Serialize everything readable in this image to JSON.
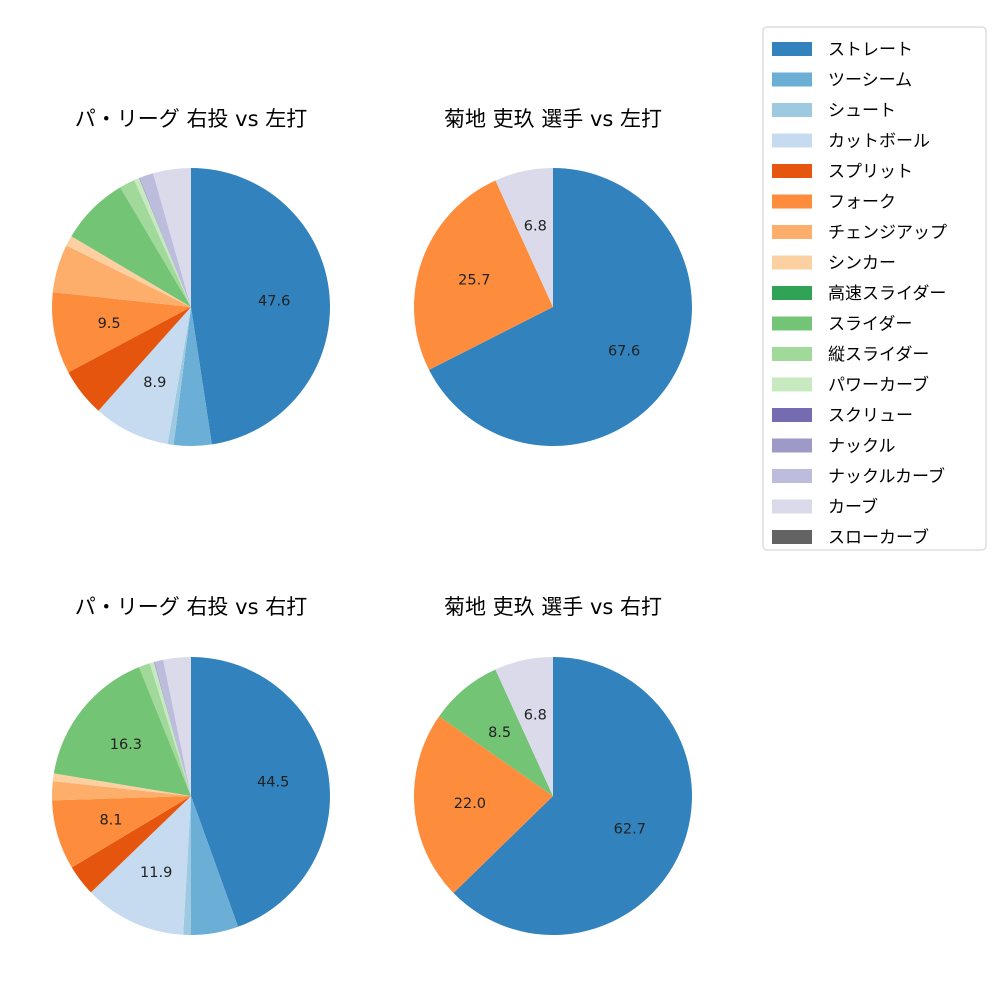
{
  "pitch_types": [
    {
      "name": "ストレート",
      "color": "#3182bd"
    },
    {
      "name": "ツーシーム",
      "color": "#6baed6"
    },
    {
      "name": "シュート",
      "color": "#9ecae1"
    },
    {
      "name": "カットボール",
      "color": "#c6dbef"
    },
    {
      "name": "スプリット",
      "color": "#e6550d"
    },
    {
      "name": "フォーク",
      "color": "#fd8d3c"
    },
    {
      "name": "チェンジアップ",
      "color": "#fdae6b"
    },
    {
      "name": "シンカー",
      "color": "#fdd0a2"
    },
    {
      "name": "高速スライダー",
      "color": "#31a354"
    },
    {
      "name": "スライダー",
      "color": "#74c476"
    },
    {
      "name": "縦スライダー",
      "color": "#a1d99b"
    },
    {
      "name": "パワーカーブ",
      "color": "#c7e9c0"
    },
    {
      "name": "スクリュー",
      "color": "#756bb1"
    },
    {
      "name": "ナックル",
      "color": "#9e9ac8"
    },
    {
      "name": "ナックルカーブ",
      "color": "#bcbddc"
    },
    {
      "name": "カーブ",
      "color": "#dadaeb"
    },
    {
      "name": "スローカーブ",
      "color": "#636363"
    }
  ],
  "chart_data": [
    {
      "type": "pie",
      "title": "パ・リーグ 右投 vs 左打",
      "labels": [
        "ストレート",
        "ツーシーム",
        "シュート",
        "カットボール",
        "スプリット",
        "フォーク",
        "チェンジアップ",
        "シンカー",
        "高速スライダー",
        "スライダー",
        "縦スライダー",
        "パワーカーブ",
        "スクリュー",
        "ナックル",
        "ナックルカーブ",
        "カーブ",
        "スローカーブ"
      ],
      "values": [
        47.6,
        4.4,
        0.7,
        8.9,
        5.6,
        9.5,
        5.6,
        1.2,
        0.0,
        8.0,
        1.8,
        0.6,
        0.0,
        0.1,
        1.6,
        4.4,
        0.0
      ],
      "data_labels": [
        "47.6",
        "",
        "",
        "8.9",
        "",
        "9.5",
        "",
        "",
        "",
        "",
        "",
        "",
        "",
        "",
        "",
        "",
        ""
      ]
    },
    {
      "type": "pie",
      "title": "菊地 吏玖 選手 vs 左打",
      "labels": [
        "ストレート",
        "フォーク",
        "カーブ"
      ],
      "values": [
        67.6,
        25.7,
        6.8
      ],
      "data_labels": [
        "67.6",
        "25.7",
        "6.8"
      ]
    },
    {
      "type": "pie",
      "title": "パ・リーグ 右投 vs 右打",
      "labels": [
        "ストレート",
        "ツーシーム",
        "シュート",
        "カットボール",
        "スプリット",
        "フォーク",
        "チェンジアップ",
        "シンカー",
        "高速スライダー",
        "スライダー",
        "縦スライダー",
        "パワーカーブ",
        "スクリュー",
        "ナックル",
        "ナックルカーブ",
        "カーブ",
        "スローカーブ"
      ],
      "values": [
        44.5,
        5.5,
        0.9,
        11.9,
        3.6,
        8.1,
        2.2,
        0.9,
        0.0,
        16.3,
        1.3,
        0.5,
        0.0,
        0.1,
        1.0,
        3.2,
        0.0
      ],
      "data_labels": [
        "44.5",
        "",
        "",
        "11.9",
        "",
        "8.1",
        "",
        "",
        "",
        "16.3",
        "",
        "",
        "",
        "",
        "",
        "",
        ""
      ]
    },
    {
      "type": "pie",
      "title": "菊地 吏玖 選手 vs 右打",
      "labels": [
        "ストレート",
        "フォーク",
        "スライダー",
        "カーブ"
      ],
      "values": [
        62.7,
        22.0,
        8.5,
        6.8
      ],
      "data_labels": [
        "62.7",
        "22.0",
        "8.5",
        "6.8"
      ]
    }
  ]
}
